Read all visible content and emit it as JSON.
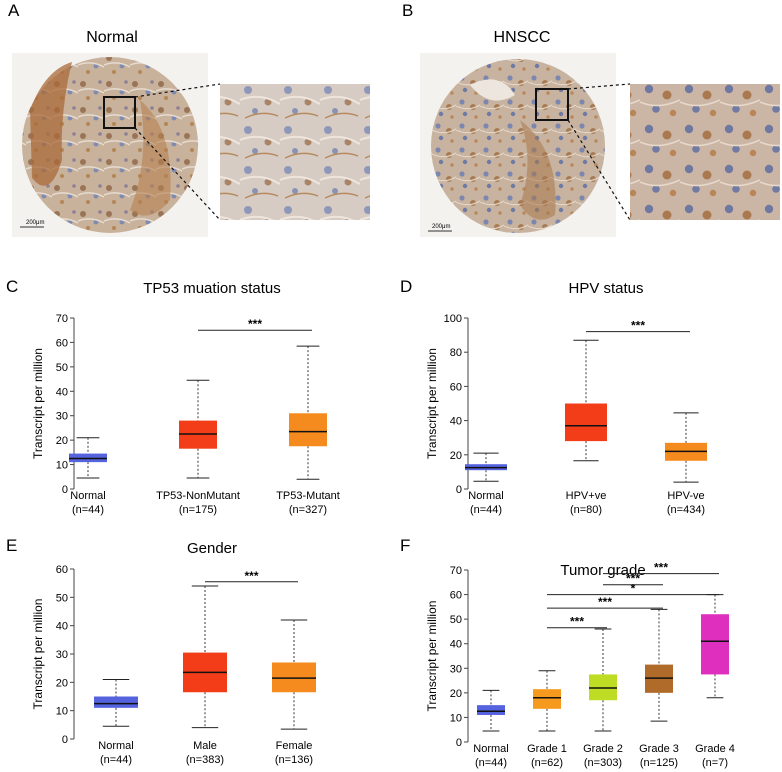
{
  "figure": {
    "panels": [
      {
        "letter": "A",
        "title": "Normal",
        "scale_label": "200μm"
      },
      {
        "letter": "B",
        "title": "HNSCC",
        "scale_label": "200μm"
      }
    ]
  },
  "colors": {
    "Normal": "#5563df",
    "TP53-NonMutant": "#f23d18",
    "TP53-Mutant": "#f58a1f",
    "HPV+ve": "#f23d18",
    "HPV-ve": "#f58a1f",
    "Male": "#f23d18",
    "Female": "#f58a1f",
    "Grade 1": "#f59a1f",
    "Grade 2": "#bedc23",
    "Grade 3": "#b06a2a",
    "Grade 4": "#df2fbe"
  },
  "chart_data": [
    {
      "panel": "C",
      "type": "box",
      "title": "TP53 muation status",
      "ylabel": "Transcript per million",
      "ylim": [
        0,
        70
      ],
      "yticks": [
        0,
        10,
        20,
        30,
        40,
        50,
        60,
        70
      ],
      "categories": [
        "Normal",
        "TP53-NonMutant",
        "TP53-Mutant"
      ],
      "counts": [
        "(n=44)",
        "(n=175)",
        "(n=327)"
      ],
      "boxes": [
        {
          "min": 4.5,
          "q1": 11,
          "median": 12.5,
          "q3": 14.5,
          "max": 21
        },
        {
          "min": 4.5,
          "q1": 16.5,
          "median": 22.5,
          "q3": 28,
          "max": 44.5
        },
        {
          "min": 4,
          "q1": 17.5,
          "median": 23.5,
          "q3": 31,
          "max": 58.5
        }
      ],
      "significance": [
        {
          "from": 1,
          "to": 2,
          "y": 65,
          "label": "***"
        }
      ]
    },
    {
      "panel": "D",
      "type": "box",
      "title": "HPV status",
      "ylabel": "Transcript per million",
      "ylim": [
        0,
        100
      ],
      "yticks": [
        0,
        20,
        40,
        60,
        80,
        100
      ],
      "categories": [
        "Normal",
        "HPV+ve",
        "HPV-ve"
      ],
      "counts": [
        "(n=44)",
        "(n=80)",
        "(n=434)"
      ],
      "boxes": [
        {
          "min": 4.5,
          "q1": 11,
          "median": 12.5,
          "q3": 14.5,
          "max": 21
        },
        {
          "min": 16.5,
          "q1": 28,
          "median": 37,
          "q3": 50,
          "max": 87
        },
        {
          "min": 4,
          "q1": 16.5,
          "median": 22,
          "q3": 27,
          "max": 44.5
        }
      ],
      "significance": [
        {
          "from": 1,
          "to": 2,
          "y": 92,
          "label": "***"
        }
      ]
    },
    {
      "panel": "E",
      "type": "box",
      "title": "Gender",
      "ylabel": "Transcript per million",
      "ylim": [
        0,
        60
      ],
      "yticks": [
        0,
        10,
        20,
        30,
        40,
        50,
        60
      ],
      "categories": [
        "Normal",
        "Male",
        "Female"
      ],
      "counts": [
        "(n=44)",
        "(n=383)",
        "(n=136)"
      ],
      "boxes": [
        {
          "min": 4.5,
          "q1": 11,
          "median": 12.5,
          "q3": 15,
          "max": 21
        },
        {
          "min": 4,
          "q1": 16.5,
          "median": 23.5,
          "q3": 30.5,
          "max": 54
        },
        {
          "min": 3.5,
          "q1": 16.5,
          "median": 21.5,
          "q3": 27,
          "max": 42
        }
      ],
      "significance": [
        {
          "from": 1,
          "to": 2,
          "y": 55.5,
          "label": "***"
        }
      ]
    },
    {
      "panel": "F",
      "type": "box",
      "title": "Tumor grade",
      "ylabel": "Transcript per million",
      "ylim": [
        0,
        70
      ],
      "yticks": [
        0,
        10,
        20,
        30,
        40,
        50,
        60,
        70
      ],
      "categories": [
        "Normal",
        "Grade 1",
        "Grade 2",
        "Grade 3",
        "Grade 4"
      ],
      "counts": [
        "(n=44)",
        "(n=62)",
        "(n=303)",
        "(n=125)",
        "(n=7)"
      ],
      "boxes": [
        {
          "min": 4.5,
          "q1": 11,
          "median": 12.5,
          "q3": 15,
          "max": 21
        },
        {
          "min": 4.5,
          "q1": 13.5,
          "median": 18,
          "q3": 21.5,
          "max": 29
        },
        {
          "min": 4.5,
          "q1": 17,
          "median": 22,
          "q3": 27.5,
          "max": 46
        },
        {
          "min": 8.5,
          "q1": 20,
          "median": 26,
          "q3": 31.5,
          "max": 54
        },
        {
          "min": 18,
          "q1": 27.5,
          "median": 41,
          "q3": 52,
          "max": 60
        }
      ],
      "significance": [
        {
          "from": 1,
          "to": 2,
          "y": 46.5,
          "label": "***"
        },
        {
          "from": 1,
          "to": 3,
          "y": 54.5,
          "label": "***"
        },
        {
          "from": 1,
          "to": 4,
          "y": 60,
          "label": "*"
        },
        {
          "from": 2,
          "to": 3,
          "y": 64,
          "label": "***"
        },
        {
          "from": 2,
          "to": 4,
          "y": 68.5,
          "label": "***"
        }
      ]
    }
  ]
}
